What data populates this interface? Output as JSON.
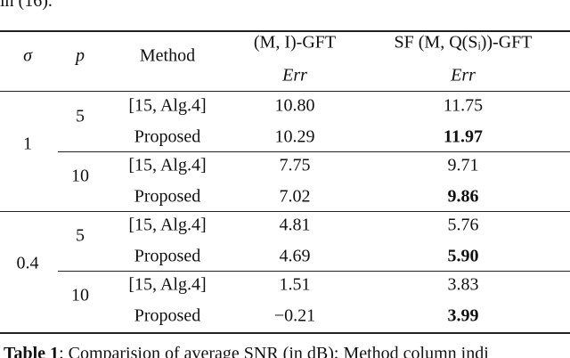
{
  "intro": "in (16).",
  "header": {
    "sigma": "σ",
    "p": "p",
    "method": "Method",
    "col1": "(M, I)-GFT",
    "col2": "SF (M, Q(Sᵢ))-GFT",
    "metric1": "Err",
    "metric2": "Err"
  },
  "groups": [
    {
      "sigma": "1",
      "subgroups": [
        {
          "p": "5",
          "rows": [
            {
              "method": "[15, Alg.4]",
              "v1": "10.80",
              "v2": "11.75",
              "v2_bold": false
            },
            {
              "method": "Proposed",
              "v1": "10.29",
              "v2": "11.97",
              "v2_bold": true
            }
          ]
        },
        {
          "p": "10",
          "rows": [
            {
              "method": "[15, Alg.4]",
              "v1": "7.75",
              "v2": "9.71",
              "v2_bold": false
            },
            {
              "method": "Proposed",
              "v1": "7.02",
              "v2": "9.86",
              "v2_bold": true
            }
          ]
        }
      ]
    },
    {
      "sigma": "0.4",
      "subgroups": [
        {
          "p": "5",
          "rows": [
            {
              "method": "[15, Alg.4]",
              "v1": "4.81",
              "v2": "5.76",
              "v2_bold": false
            },
            {
              "method": "Proposed",
              "v1": "4.69",
              "v2": "5.90",
              "v2_bold": true
            }
          ]
        },
        {
          "p": "10",
          "rows": [
            {
              "method": "[15, Alg.4]",
              "v1": "1.51",
              "v2": "3.83",
              "v2_bold": false
            },
            {
              "method": "Proposed",
              "v1": "−0.21",
              "v2": "3.99",
              "v2_bold": true
            }
          ]
        }
      ]
    }
  ],
  "caption": {
    "label": "Table 1",
    "text": ": Comparision of average SNR (in dB); Method column indi"
  }
}
